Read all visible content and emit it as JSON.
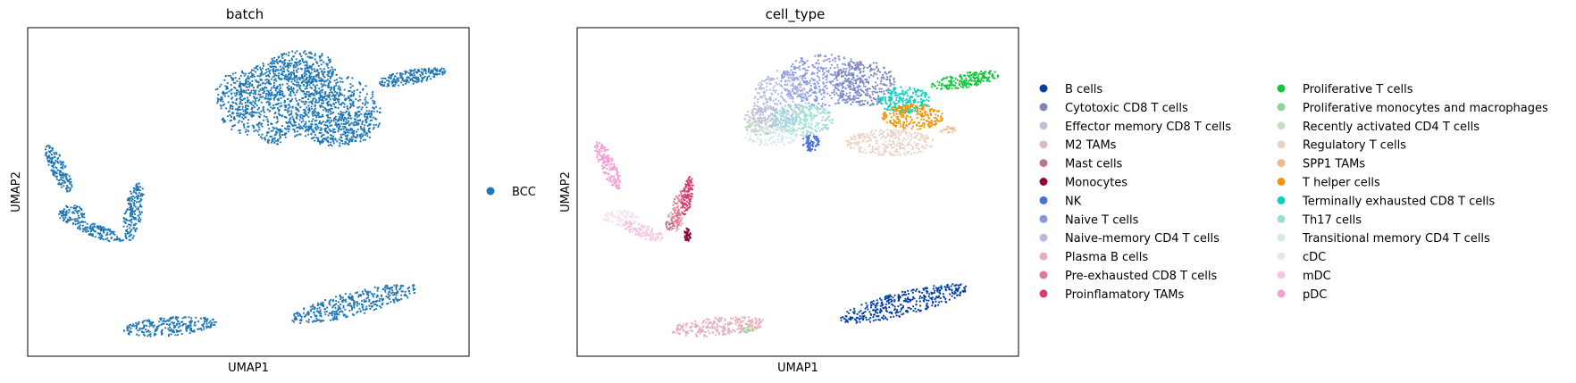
{
  "chart_data": [
    {
      "type": "scatter",
      "title": "batch",
      "xlabel": "UMAP1",
      "ylabel": "UMAP2",
      "grid": false,
      "legend_placement": "right",
      "series": [
        {
          "name": "BCC",
          "color": "#1f77b4"
        }
      ],
      "clusters": [
        {
          "label": "BCC",
          "shape": "main-blob",
          "color": "#1f77b4"
        },
        {
          "label": "BCC",
          "shape": "v-cluster",
          "color": "#1f77b4"
        },
        {
          "label": "BCC",
          "shape": "lower-left-ellipse",
          "color": "#1f77b4"
        },
        {
          "label": "BCC",
          "shape": "lower-right-ellipse",
          "color": "#1f77b4"
        }
      ]
    },
    {
      "type": "scatter",
      "title": "cell_type",
      "xlabel": "UMAP1",
      "ylabel": "UMAP2",
      "grid": false,
      "legend_placement": "right",
      "series": [
        {
          "name": "B cells",
          "color": "#023fa5"
        },
        {
          "name": "Cytotoxic CD8 T cells",
          "color": "#7d87b9"
        },
        {
          "name": "Effector memory CD8 T cells",
          "color": "#bec1d4"
        },
        {
          "name": "M2 TAMs",
          "color": "#d6bcc0"
        },
        {
          "name": "Mast cells",
          "color": "#bb7784"
        },
        {
          "name": "Monocytes",
          "color": "#8e063b"
        },
        {
          "name": "NK",
          "color": "#4a6fe3"
        },
        {
          "name": "Naive T cells",
          "color": "#8595e1"
        },
        {
          "name": "Naive-memory CD4 T cells",
          "color": "#b5bbe3"
        },
        {
          "name": "Plasma B cells",
          "color": "#e6afb9"
        },
        {
          "name": "Pre-exhausted CD8 T cells",
          "color": "#e07b91"
        },
        {
          "name": "Proinflamatory TAMs",
          "color": "#d33f6a"
        },
        {
          "name": "Proliferative T cells",
          "color": "#11c638"
        },
        {
          "name": "Proliferative monocytes and macrophages",
          "color": "#8dd593"
        },
        {
          "name": "Recently activated CD4 T cells",
          "color": "#c6dec7"
        },
        {
          "name": "Regulatory T cells",
          "color": "#ead3c6"
        },
        {
          "name": "SPP1 TAMs",
          "color": "#f0b98d"
        },
        {
          "name": "T helper cells",
          "color": "#ef9708"
        },
        {
          "name": "Terminally exhausted CD8 T cells",
          "color": "#0fcfc0"
        },
        {
          "name": "Th17 cells",
          "color": "#9cded6"
        },
        {
          "name": "Transitional memory CD4 T cells",
          "color": "#d5eae7"
        },
        {
          "name": "cDC",
          "color": "#f3e1eb"
        },
        {
          "name": "mDC",
          "color": "#f6c4e1"
        },
        {
          "name": "pDC",
          "color": "#f79cd4"
        }
      ]
    }
  ]
}
